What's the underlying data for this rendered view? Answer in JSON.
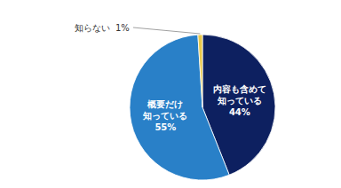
{
  "chart_data": {
    "type": "pie",
    "categories": [
      "内容も含めて\n知っている",
      "概要だけ\n知っている",
      "知らない"
    ],
    "values": [
      44,
      55,
      1
    ],
    "value_labels": [
      "44%",
      "55%",
      "1%"
    ],
    "colors": [
      "#0d2060",
      "#2980c8",
      "#e8c84a"
    ],
    "data_labels": true
  }
}
